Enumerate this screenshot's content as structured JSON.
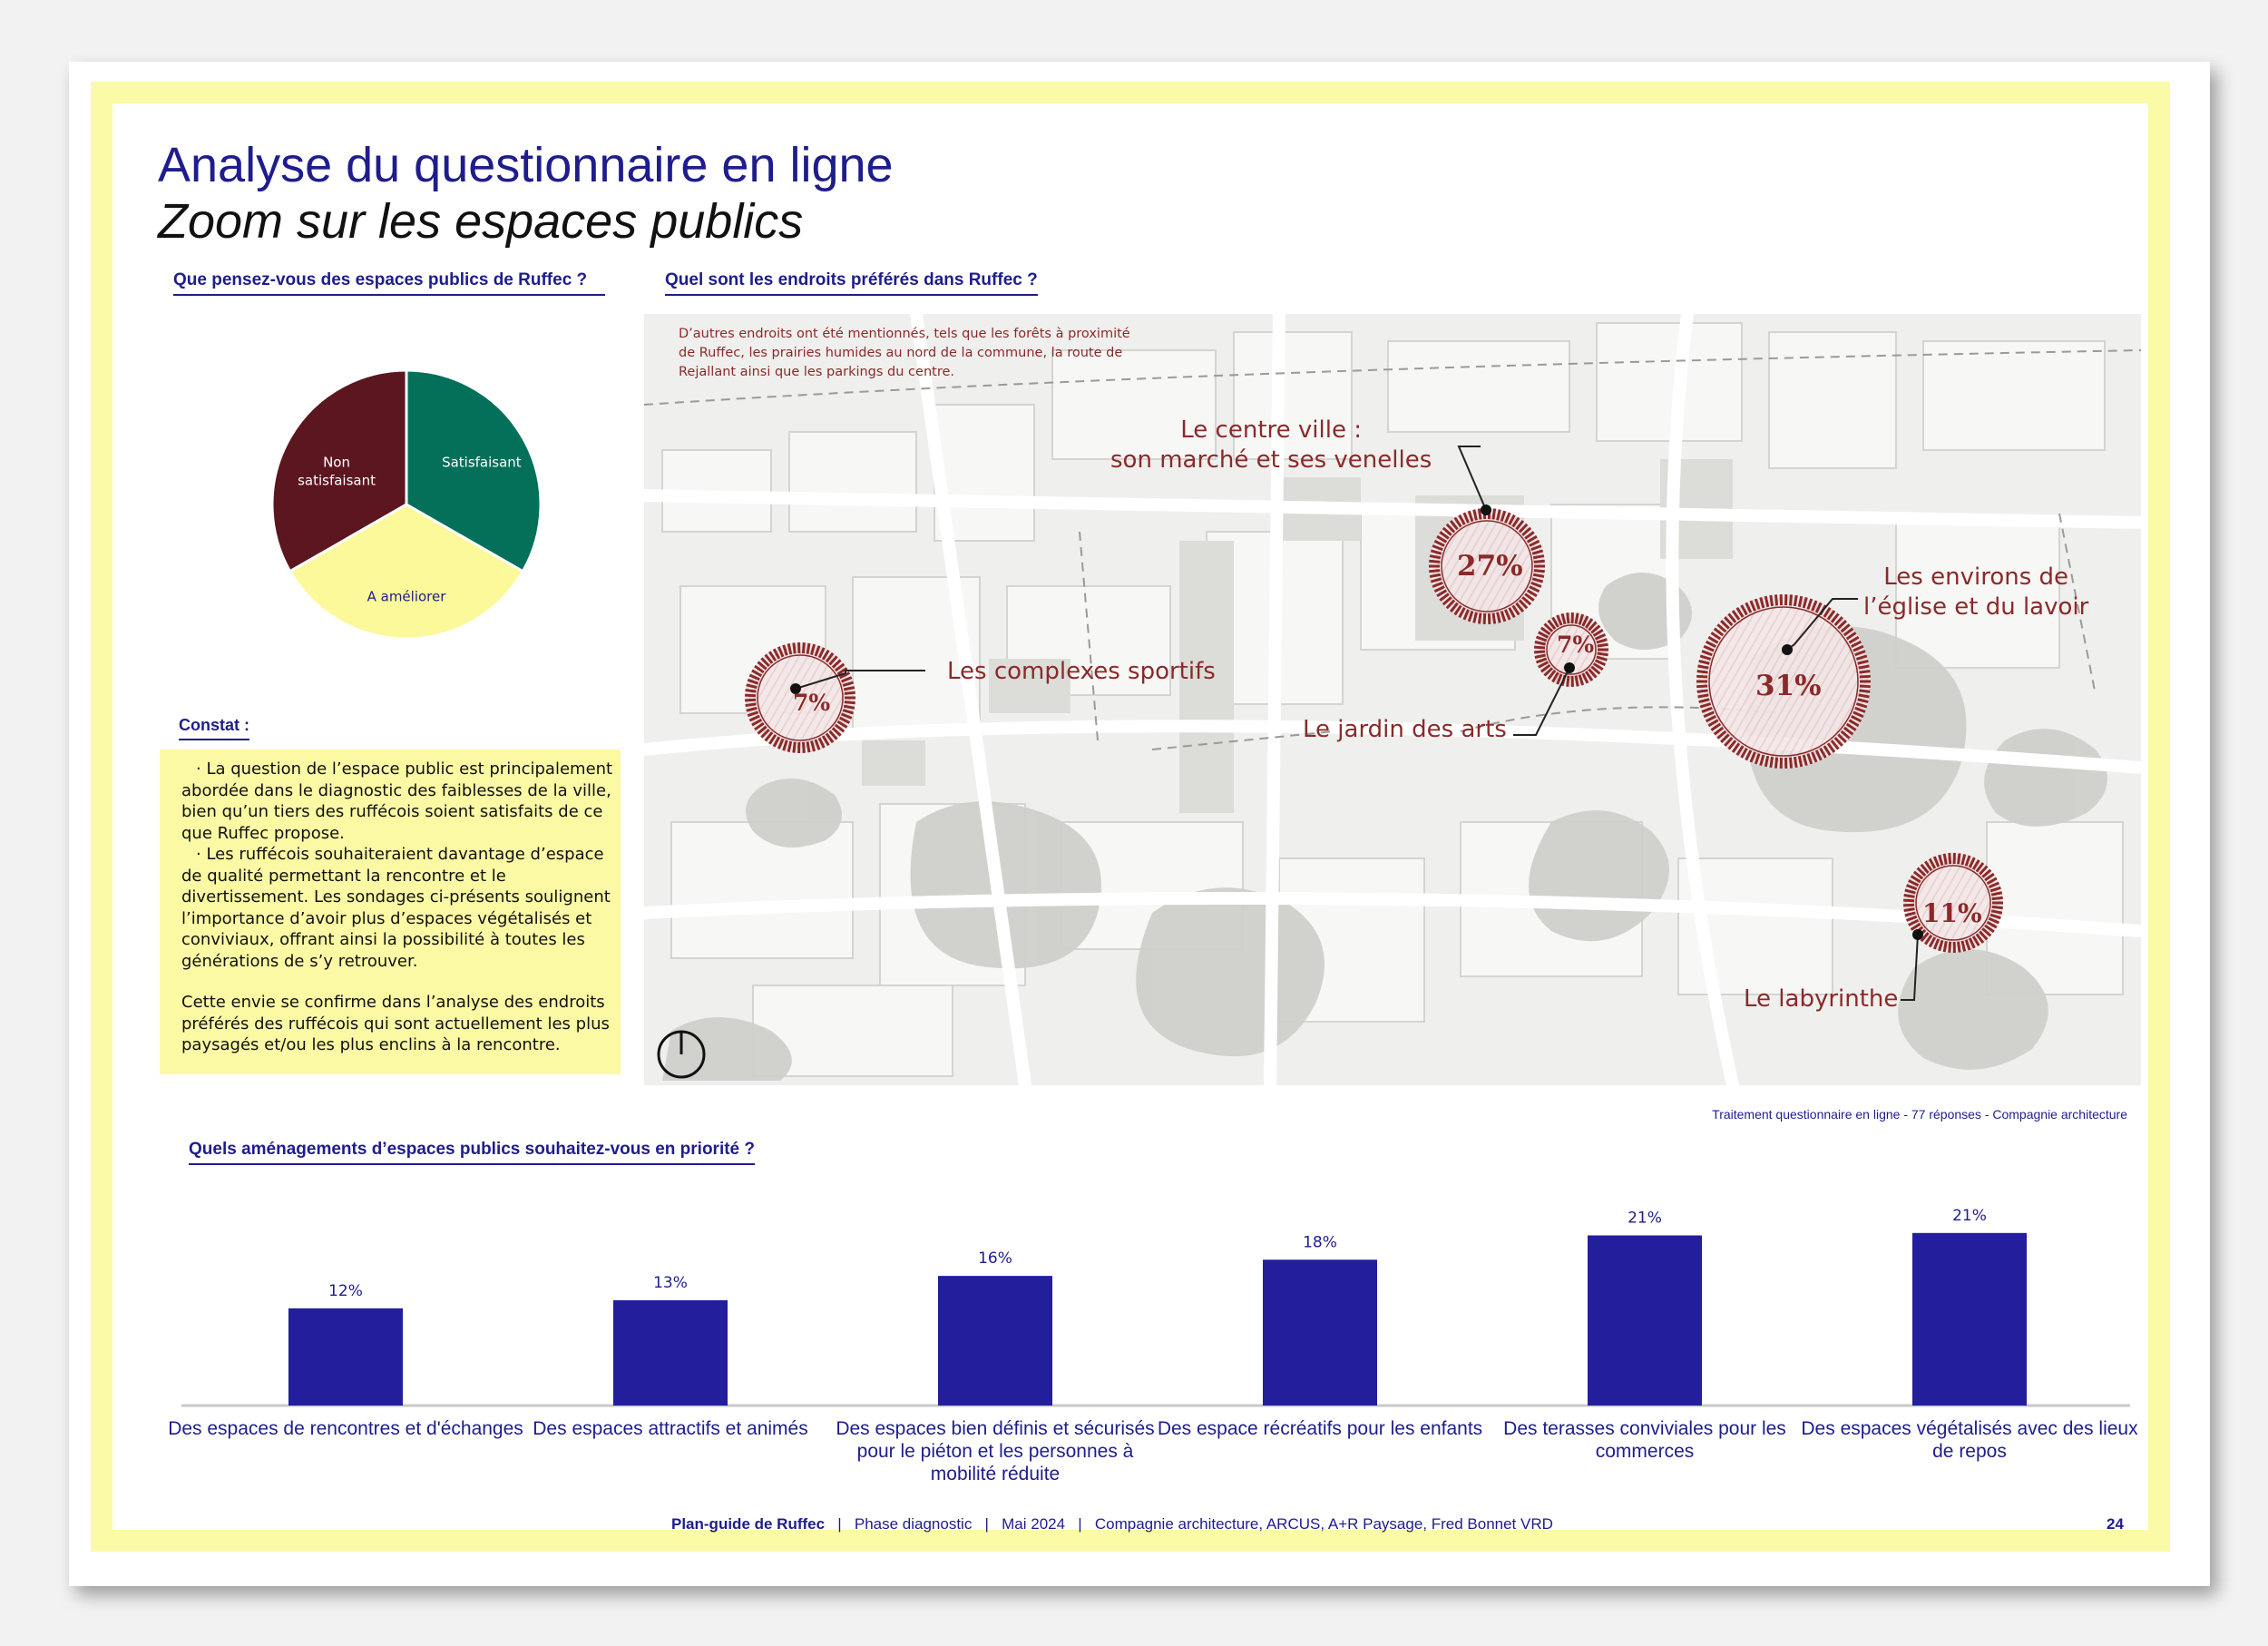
{
  "title": "Analyse du questionnaire en ligne",
  "subtitle": "Zoom sur les espaces publics",
  "pie_question": "Que pensez-vous des espaces publics de Ruffec ?",
  "map_question": "Quel sont les endroits préférés dans Ruffec ?",
  "bar_question": "Quels aménagements d’espaces publics souhaitez-vous en priorité ?",
  "constat": {
    "heading": "Constat :",
    "bullets": [
      "·   La question de l’espace public est principalement abordée dans le diagnostic des faiblesses de la ville, bien qu’un tiers des ruffécois soient satisfaits de ce que Ruffec propose.",
      "·   Les ruffécois souhaiteraient davantage d’espace de qualité permettant la rencontre et le divertissement. Les sondages ci-présents soulignent l’importance d’avoir plus d’espaces végétalisés et conviviaux, offrant ainsi la possibilité à toutes les générations de s’y retrouver."
    ],
    "closing": "Cette envie se confirme dans l’analyse des endroits préférés des ruffécois qui sont actuellement les plus paysagés et/ou les plus enclins à la rencontre."
  },
  "map": {
    "note": "D’autres endroits ont été mentionnés, tels que les forêts à proximité de Ruffec, les prairies humides au nord de la commune, la route de Rejallant ainsi que les parkings du centre.",
    "places": [
      {
        "label": "Le centre ville :\nson marché et ses venelles",
        "percent": "27%",
        "value": 27
      },
      {
        "label": "Les environs de\nl’église et du lavoir",
        "percent": "31%",
        "value": 31
      },
      {
        "label": "Les complexes sportifs",
        "percent": "7%",
        "value": 7
      },
      {
        "label": "Le jardin des arts",
        "percent": "7%",
        "value": 7
      },
      {
        "label": "Le labyrinthe",
        "percent": "11%",
        "value": 11
      }
    ],
    "source": "Traitement questionnaire en ligne - 77 réponses - Compagnie architecture"
  },
  "colors": {
    "title": "#1f1d8c",
    "bar": "#221e9c",
    "marker": "#8a2a2a",
    "highlight": "#fbf9a4",
    "non_satisfaisant": "#5c1620",
    "satisfaisant": "#04705a",
    "a_ameliorer": "#fbf99a"
  },
  "chart_data": [
    {
      "type": "pie",
      "categories": [
        "Non satisfaisant",
        "Satisfaisant",
        "A améliorer"
      ],
      "values": [
        33.3,
        33.3,
        33.4
      ],
      "slice_labels": [
        "Non\nsatisfaisant",
        "Satisfaisant",
        "A améliorer"
      ],
      "colors": [
        "#5c1620",
        "#04705a",
        "#fbf99a"
      ],
      "title": "",
      "legend": "none"
    },
    {
      "type": "bar",
      "categories": [
        "Des espaces de rencontres et d'échanges",
        "Des espaces attractifs et animés",
        "Des espaces bien définis et sécurisés pour le piéton et les personnes à mobilité réduite",
        "Des espace récréatifs pour les enfants",
        "Des terasses conviviales pour les commerces",
        "Des espaces végétalisés avec des lieux de repos"
      ],
      "values": [
        12,
        13,
        16,
        18,
        21,
        21.3
      ],
      "value_labels": [
        "12%",
        "13%",
        "16%",
        "18%",
        "21%",
        "21%"
      ],
      "title": "",
      "xlabel": "",
      "ylabel": "",
      "ylim": [
        0,
        28
      ],
      "grid": false,
      "legend": "none"
    }
  ],
  "footer": {
    "project": "Plan-guide de Ruffec",
    "phase": "Phase diagnostic",
    "date": "Mai 2024",
    "team": "Compagnie architecture, ARCUS, A+R Paysage, Fred Bonnet VRD",
    "page": "24"
  }
}
